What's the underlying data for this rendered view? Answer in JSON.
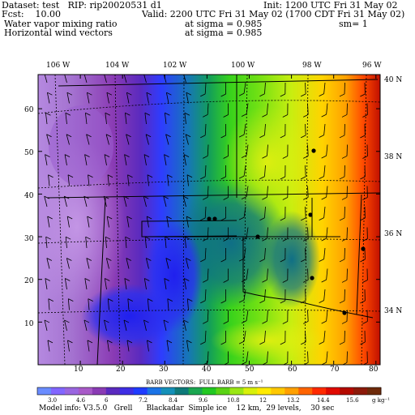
{
  "header": {
    "dataset": "Dataset: test   RIP: rip20020531 d1",
    "init": "Init: 1200 UTC Fri 31 May 02",
    "fcst": "Fcst:    10.00",
    "valid": "Valid: 2200 UTC Fri 31 May 02 (1700 CDT Fri 31 May 02)",
    "field1": "Water vapor mixing ratio",
    "field1_level": "at sigma = 0.985",
    "field1_extra": "sm= 1",
    "field2": "Horizontal wind vectors",
    "field2_level": "at sigma = 0.985"
  },
  "map": {
    "lon_labels": [
      "106 W",
      "104 W",
      "102 W",
      "100 W",
      "98 W",
      "96 W"
    ],
    "lat_labels": [
      "40 N",
      "38 N",
      "36 N",
      "34 N"
    ],
    "y_ticks": [
      "60",
      "50",
      "40",
      "30",
      "20",
      "10"
    ],
    "x_ticks": [
      "10",
      "20",
      "30",
      "40",
      "50",
      "60",
      "70",
      "80"
    ],
    "field": "water vapor mixing ratio",
    "overlay": "wind barbs",
    "colors": {
      "border": "#000000",
      "low": "#9a66d6",
      "high": "#8b1a0a"
    }
  },
  "barb_note": "BARB VECTORS:  FULL BARB = 5 m s⁻¹",
  "colorbar": {
    "labels": [
      "3.0",
      "4.6",
      "6",
      "7.2",
      "8.4",
      "9.6",
      "10.8",
      "12",
      "13.2",
      "14.4",
      "15.6"
    ],
    "unit": "g kg⁻¹",
    "colors": [
      "#6a8cff",
      "#8266ff",
      "#9a66e0",
      "#a85ac8",
      "#8a3bb4",
      "#5a2abf",
      "#3e2ee4",
      "#1f3cff",
      "#1a73e6",
      "#1490b8",
      "#0e7a7a",
      "#1aa650",
      "#22c822",
      "#5ad214",
      "#9ae614",
      "#d8f00a",
      "#ffea00",
      "#ffc800",
      "#ffa000",
      "#ff6400",
      "#ff2a00",
      "#e00a00",
      "#b40a00",
      "#8c1a0a",
      "#6e2a0a"
    ]
  },
  "footer": "Model info: V3.5.0   Grell      Blackadar  Simple ice    12 km,  29 levels,    30 sec"
}
